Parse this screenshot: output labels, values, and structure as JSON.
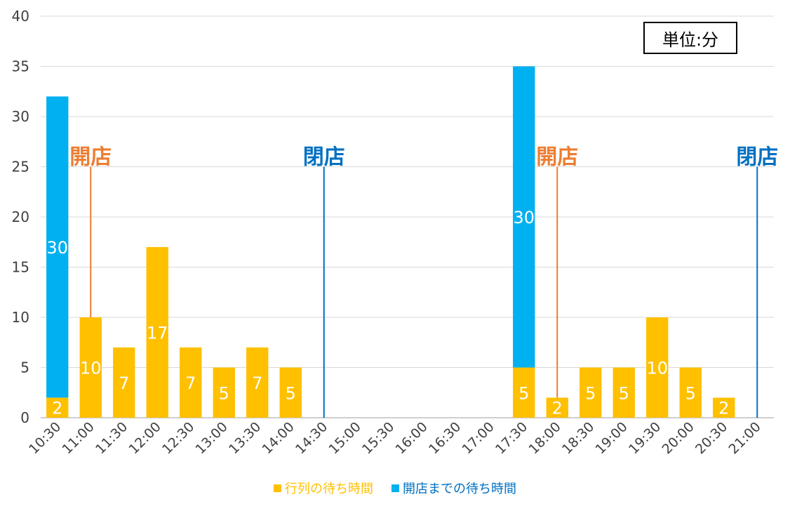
{
  "chart_data": {
    "type": "bar",
    "stacked": true,
    "categories": [
      "10:30",
      "11:00",
      "11:30",
      "12:00",
      "12:30",
      "13:00",
      "13:30",
      "14:00",
      "14:30",
      "15:00",
      "15:30",
      "16:00",
      "16:30",
      "17:00",
      "17:30",
      "18:00",
      "18:30",
      "19:00",
      "19:30",
      "20:00",
      "20:30",
      "21:00"
    ],
    "series": [
      {
        "name": "行列の待ち時間",
        "color": "#FFC000",
        "values": [
          2,
          10,
          7,
          17,
          7,
          5,
          7,
          5,
          0,
          0,
          0,
          0,
          0,
          0,
          5,
          2,
          5,
          5,
          10,
          5,
          2,
          0
        ]
      },
      {
        "name": "開店までの待ち時間",
        "color": "#00B0F0",
        "values": [
          30,
          0,
          0,
          0,
          0,
          0,
          0,
          0,
          0,
          0,
          0,
          0,
          0,
          0,
          30,
          0,
          0,
          0,
          0,
          0,
          0,
          0
        ]
      }
    ],
    "ylim": [
      0,
      40
    ],
    "yticks": [
      0,
      5,
      10,
      15,
      20,
      25,
      30,
      35,
      40
    ],
    "grid": true,
    "legend": "bottom",
    "annotations": [
      {
        "text": "開店",
        "color": "#ED7D31",
        "category": "11:00",
        "line_from": 10,
        "line_to": 25
      },
      {
        "text": "閉店",
        "color": "#0070C0",
        "category": "14:30",
        "line_from": 0,
        "line_to": 25
      },
      {
        "text": "開店",
        "color": "#ED7D31",
        "category": "18:00",
        "line_from": 2,
        "line_to": 25
      },
      {
        "text": "閉店",
        "color": "#0070C0",
        "category": "21:00",
        "line_from": 0,
        "line_to": 25
      }
    ]
  },
  "unit_label": "単位:分"
}
